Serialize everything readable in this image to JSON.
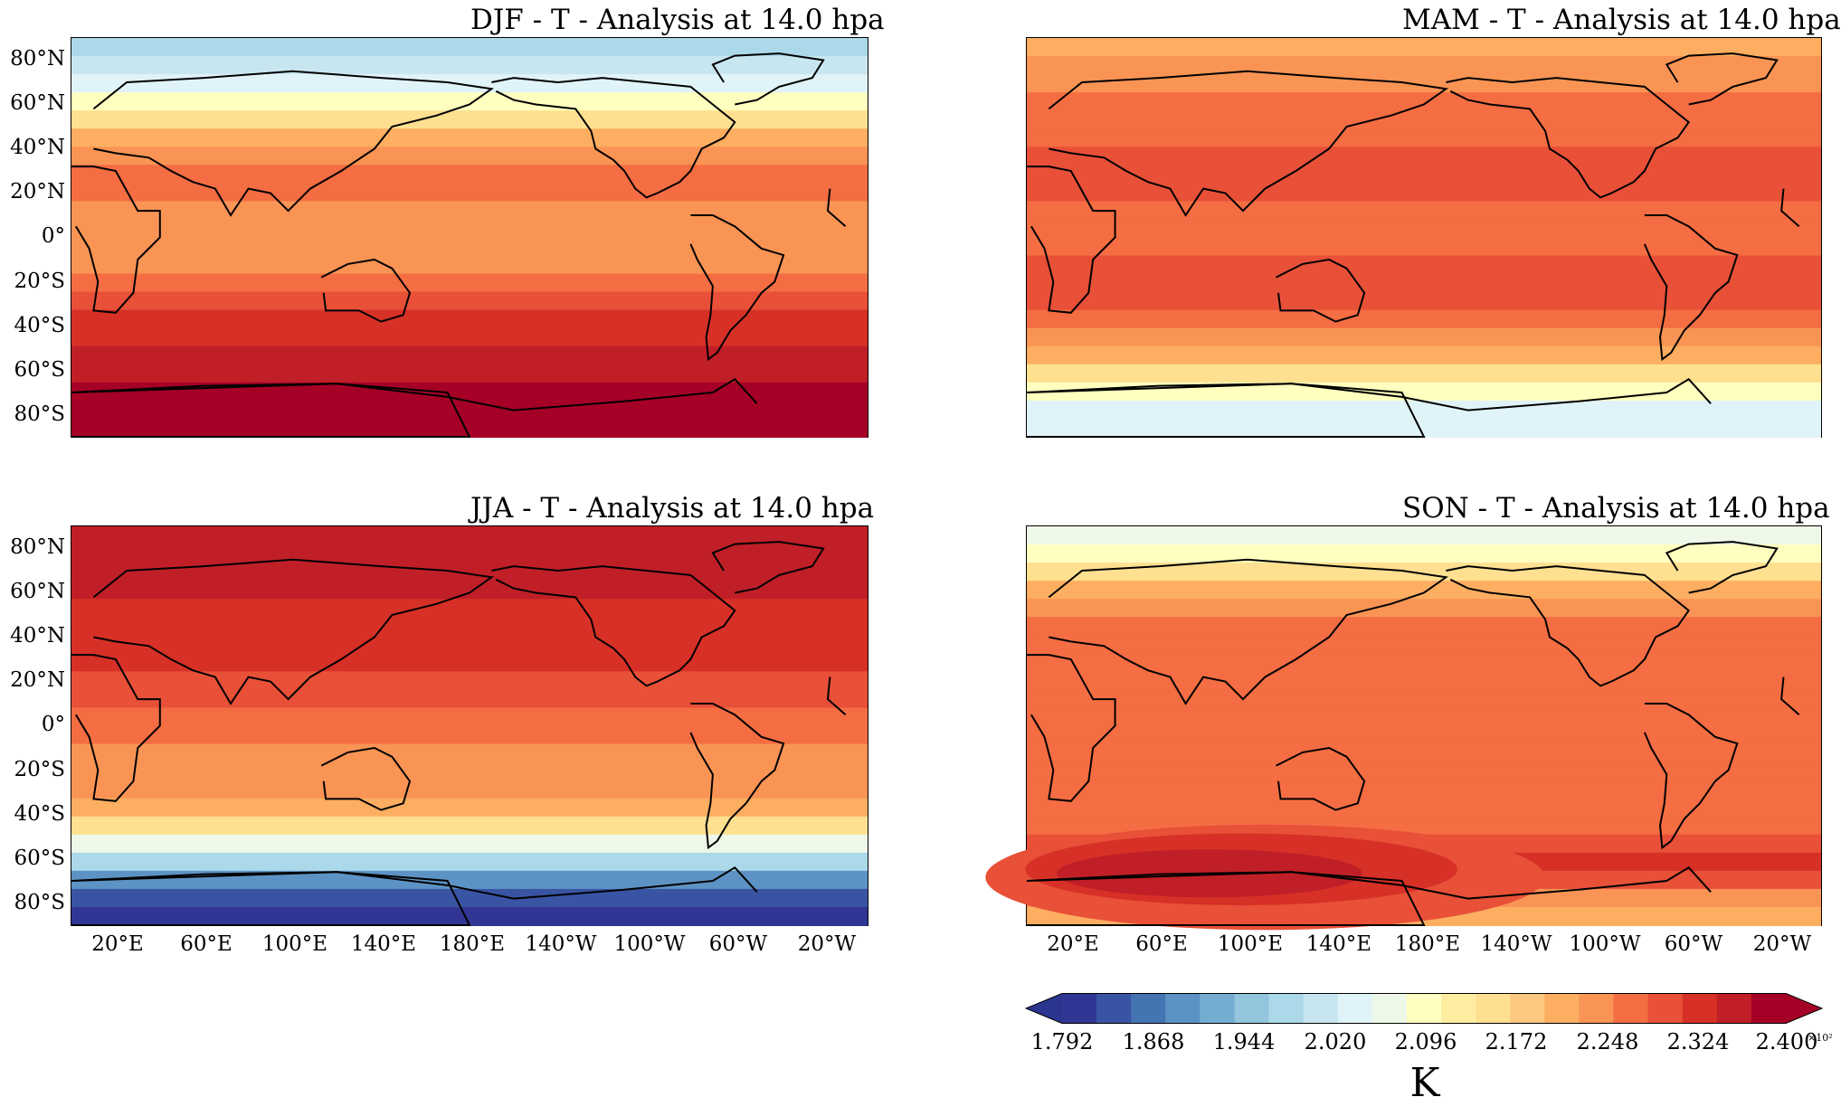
{
  "panels": [
    {
      "id": "djf",
      "title": "DJF - T - Analysis at 14.0 hpa",
      "pattern": "djf"
    },
    {
      "id": "mam",
      "title": "MAM - T - Analysis at 14.0 hpa",
      "pattern": "mam"
    },
    {
      "id": "jja",
      "title": "JJA - T - Analysis at 14.0 hpa",
      "pattern": "jja"
    },
    {
      "id": "son",
      "title": "SON - T - Analysis at 14.0 hpa",
      "pattern": "son"
    }
  ],
  "lat_ticks": [
    "80°N",
    "60°N",
    "40°N",
    "20°N",
    "0°",
    "20°S",
    "40°S",
    "60°S",
    "80°S"
  ],
  "lon_ticks": [
    "20°E",
    "60°E",
    "100°E",
    "140°E",
    "180°E",
    "140°W",
    "100°W",
    "60°W",
    "20°W"
  ],
  "colorbar": {
    "tick_labels": [
      "1.792",
      "1.868",
      "1.944",
      "2.020",
      "2.096",
      "2.172",
      "2.248",
      "2.324",
      "2.400"
    ],
    "unit": "K",
    "exponent": "×10²",
    "colors": [
      "#313695",
      "#3a54a4",
      "#4574b3",
      "#5d93c4",
      "#74add1",
      "#93c5dd",
      "#abd9e9",
      "#c8e6f0",
      "#e0f3f8",
      "#eef8e8",
      "#ffffbf",
      "#feeda1",
      "#fee090",
      "#fdc980",
      "#fdae61",
      "#f99455",
      "#f46d43",
      "#e85038",
      "#d73027",
      "#c01f27",
      "#a50026"
    ]
  }
}
